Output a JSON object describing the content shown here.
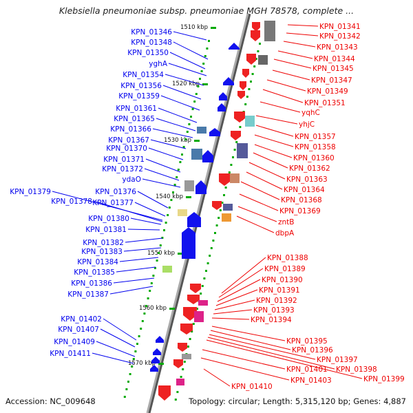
{
  "title": "Klebsiella pneumoniae subsp. pneumoniae MGH 78578, complete ...",
  "footer": {
    "accession": "Accession: NC_009648",
    "stats": "Topology: circular; Length: 5,315,120 bp; Genes: 4,887"
  },
  "colors": {
    "left_strand": "#0000ee",
    "right_strand": "#ee0000",
    "backbone": "#999999",
    "tick": "#00aa00"
  },
  "scale_ticks": [
    "1510 kbp",
    "1520 kbp",
    "1530 kbp",
    "1540 kbp",
    "1550 kbp",
    "1560 kbp",
    "1570 kbp"
  ],
  "left_genes": [
    "KPN_01346",
    "KPN_01348",
    "KPN_01350",
    "yghA",
    "KPN_01354",
    "KPN_01356",
    "KPN_01359",
    "KPN_01361",
    "KPN_01365",
    "KPN_01366",
    "KPN_01367",
    "KPN_01370",
    "KPN_01371",
    "KPN_01372",
    "ydaO",
    "KPN_01376",
    "KPN_01379",
    "KPN_01378",
    "KPN_01377",
    "KPN_01380",
    "KPN_01381",
    "KPN_01382",
    "KPN_01383",
    "KPN_01384",
    "KPN_01385",
    "KPN_01386",
    "KPN_01387",
    "KPN_01402",
    "KPN_01407",
    "KPN_01409",
    "KPN_01411"
  ],
  "right_genes": [
    "KPN_01341",
    "KPN_01342",
    "KPN_01343",
    "KPN_01344",
    "KPN_01345",
    "KPN_01347",
    "KPN_01349",
    "KPN_01351",
    "yqhC",
    "yhjC",
    "KPN_01357",
    "KPN_01358",
    "KPN_01360",
    "KPN_01362",
    "KPN_01363",
    "KPN_01364",
    "KPN_01368",
    "KPN_01369",
    "zntB",
    "dbpA",
    "KPN_01388",
    "KPN_01389",
    "KPN_01390",
    "KPN_01391",
    "KPN_01392",
    "KPN_01393",
    "KPN_01394",
    "KPN_01395",
    "KPN_01396",
    "KPN_01397",
    "KPN_01398",
    "KPN_01399",
    "KPN_01401",
    "KPN_01403",
    "KPN_01410"
  ]
}
